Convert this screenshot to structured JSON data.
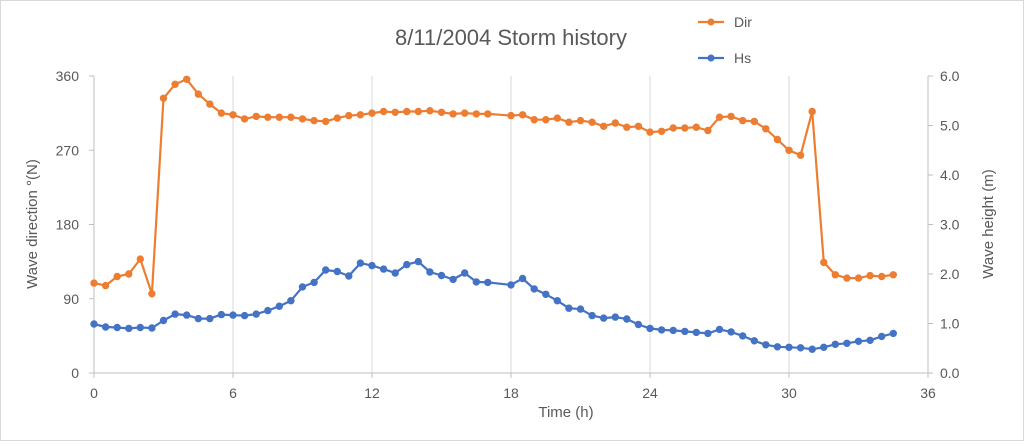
{
  "chart_data": {
    "type": "line",
    "title": "8/11/2004 Storm history",
    "xlabel": "Time (h)",
    "ylabel": "Wave direction °(N)",
    "y2label": "Wave height (m)",
    "xlim": [
      0,
      36
    ],
    "ylim": [
      0,
      360
    ],
    "y2lim": [
      0,
      6
    ],
    "xticks": [
      "0",
      "6",
      "12",
      "18",
      "24",
      "30",
      "36"
    ],
    "yticks": [
      "0",
      "90",
      "180",
      "270",
      "360"
    ],
    "y2ticks": [
      "0.0",
      "1.0",
      "2.0",
      "3.0",
      "4.0",
      "5.0",
      "6.0"
    ],
    "grid": "vertical",
    "legend": "top-right",
    "series": [
      {
        "name": "Dir",
        "axis": "left",
        "color": "#ed7d31",
        "x": [
          0,
          0.5,
          1,
          1.5,
          2,
          2.5,
          3,
          3.5,
          4,
          4.5,
          5,
          5.5,
          6,
          6.5,
          7,
          7.5,
          8,
          8.5,
          9,
          9.5,
          10,
          10.5,
          11,
          11.5,
          12,
          12.5,
          13,
          13.5,
          14,
          14.5,
          15,
          15.5,
          16,
          16.5,
          17,
          18,
          18.5,
          19,
          19.5,
          20,
          20.5,
          21,
          21.5,
          22,
          22.5,
          23,
          23.5,
          24,
          24.5,
          25,
          25.5,
          26,
          26.5,
          27,
          27.5,
          28,
          28.5,
          29,
          29.5,
          30,
          30.5,
          31,
          31.5,
          32,
          32.5,
          33,
          33.5,
          34,
          34.5
        ],
        "values": [
          109,
          106,
          117,
          120,
          138,
          96,
          333,
          350,
          356,
          338,
          326,
          315,
          313,
          308,
          311,
          310,
          310,
          310,
          308,
          306,
          305,
          309,
          312,
          313,
          315,
          317,
          316,
          317,
          317,
          318,
          316,
          314,
          315,
          314,
          314,
          312,
          313,
          307,
          307,
          309,
          304,
          306,
          304,
          299,
          303,
          298,
          299,
          292,
          293,
          297,
          297,
          298,
          294,
          310,
          311,
          306,
          305,
          296,
          283,
          270,
          264,
          317,
          134,
          119,
          115,
          115,
          118,
          117,
          119
        ]
      },
      {
        "name": "Hs",
        "axis": "right",
        "color": "#4472c4",
        "x": [
          0,
          0.5,
          1,
          1.5,
          2,
          2.5,
          3,
          3.5,
          4,
          4.5,
          5,
          5.5,
          6,
          6.5,
          7,
          7.5,
          8,
          8.5,
          9,
          9.5,
          10,
          10.5,
          11,
          11.5,
          12,
          12.5,
          13,
          13.5,
          14,
          14.5,
          15,
          15.5,
          16,
          16.5,
          17,
          18,
          18.5,
          19,
          19.5,
          20,
          20.5,
          21,
          21.5,
          22,
          22.5,
          23,
          23.5,
          24,
          24.5,
          25,
          25.5,
          26,
          26.5,
          27,
          27.5,
          28,
          28.5,
          29,
          29.5,
          30,
          30.5,
          31,
          31.5,
          32,
          32.5,
          33,
          33.5,
          34,
          34.5
        ],
        "values": [
          0.99,
          0.93,
          0.92,
          0.9,
          0.92,
          0.91,
          1.06,
          1.19,
          1.17,
          1.1,
          1.1,
          1.18,
          1.17,
          1.16,
          1.19,
          1.26,
          1.35,
          1.46,
          1.74,
          1.83,
          2.08,
          2.05,
          1.96,
          2.22,
          2.17,
          2.1,
          2.02,
          2.19,
          2.25,
          2.04,
          1.97,
          1.89,
          2.02,
          1.84,
          1.83,
          1.78,
          1.91,
          1.7,
          1.59,
          1.46,
          1.31,
          1.29,
          1.16,
          1.11,
          1.13,
          1.09,
          0.98,
          0.9,
          0.87,
          0.86,
          0.84,
          0.82,
          0.8,
          0.88,
          0.83,
          0.75,
          0.65,
          0.57,
          0.53,
          0.52,
          0.51,
          0.48,
          0.52,
          0.58,
          0.6,
          0.64,
          0.66,
          0.74,
          0.8
        ]
      }
    ]
  }
}
